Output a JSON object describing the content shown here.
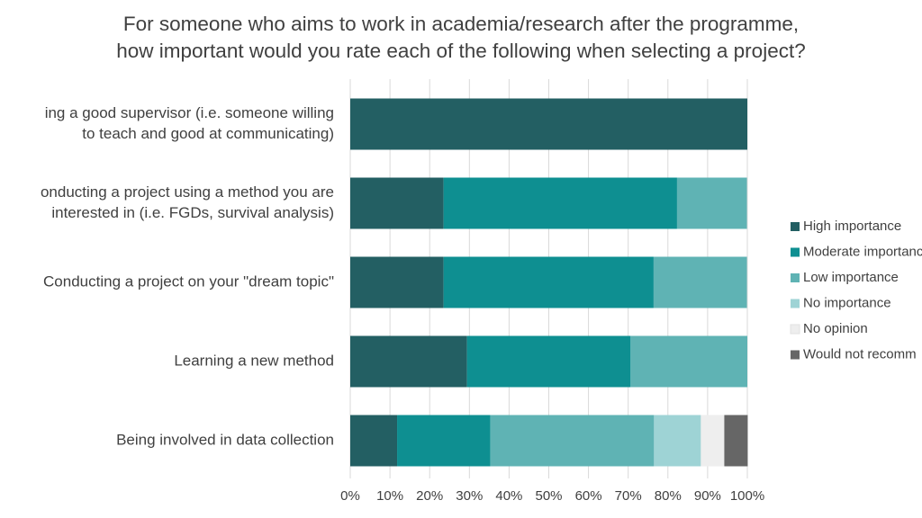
{
  "chart_data": {
    "type": "bar",
    "stacked": true,
    "orientation": "horizontal",
    "title_lines": [
      "For someone who aims to work in academia/research after the programme,",
      "how important would you rate each of the following when selecting a project?"
    ],
    "categories": [
      [
        "ing a good supervisor (i.e. someone willing",
        "to teach and good at communicating)"
      ],
      [
        "onducting a project using a method you are",
        "interested in (i.e. FGDs, survival analysis)"
      ],
      [
        "Conducting a project on your \"dream topic\""
      ],
      [
        "Learning a new method"
      ],
      [
        "Being involved in data collection"
      ]
    ],
    "series": [
      {
        "name": "High importance",
        "color": "#235F63",
        "values": [
          100,
          23.5,
          23.5,
          29.4,
          11.8
        ]
      },
      {
        "name": "Moderate importanc",
        "color": "#0E8F91",
        "values": [
          0,
          58.8,
          52.9,
          41.2,
          23.5
        ]
      },
      {
        "name": "Low importance",
        "color": "#5FB3B4",
        "values": [
          0,
          17.6,
          23.5,
          29.4,
          41.2
        ]
      },
      {
        "name": "No importance",
        "color": "#9ED3D5",
        "values": [
          0,
          0,
          0,
          0,
          11.8
        ]
      },
      {
        "name": "No opinion",
        "color": "#EEEEEE",
        "values": [
          0,
          0,
          0,
          0,
          5.9
        ]
      },
      {
        "name": "Would not recomm",
        "color": "#666666",
        "values": [
          0,
          0,
          0,
          0,
          5.9
        ]
      }
    ],
    "xlim": [
      0,
      100
    ],
    "xticks": [
      "0%",
      "10%",
      "20%",
      "30%",
      "40%",
      "50%",
      "60%",
      "70%",
      "80%",
      "90%",
      "100%"
    ],
    "grid": true,
    "legend_position": "right"
  }
}
